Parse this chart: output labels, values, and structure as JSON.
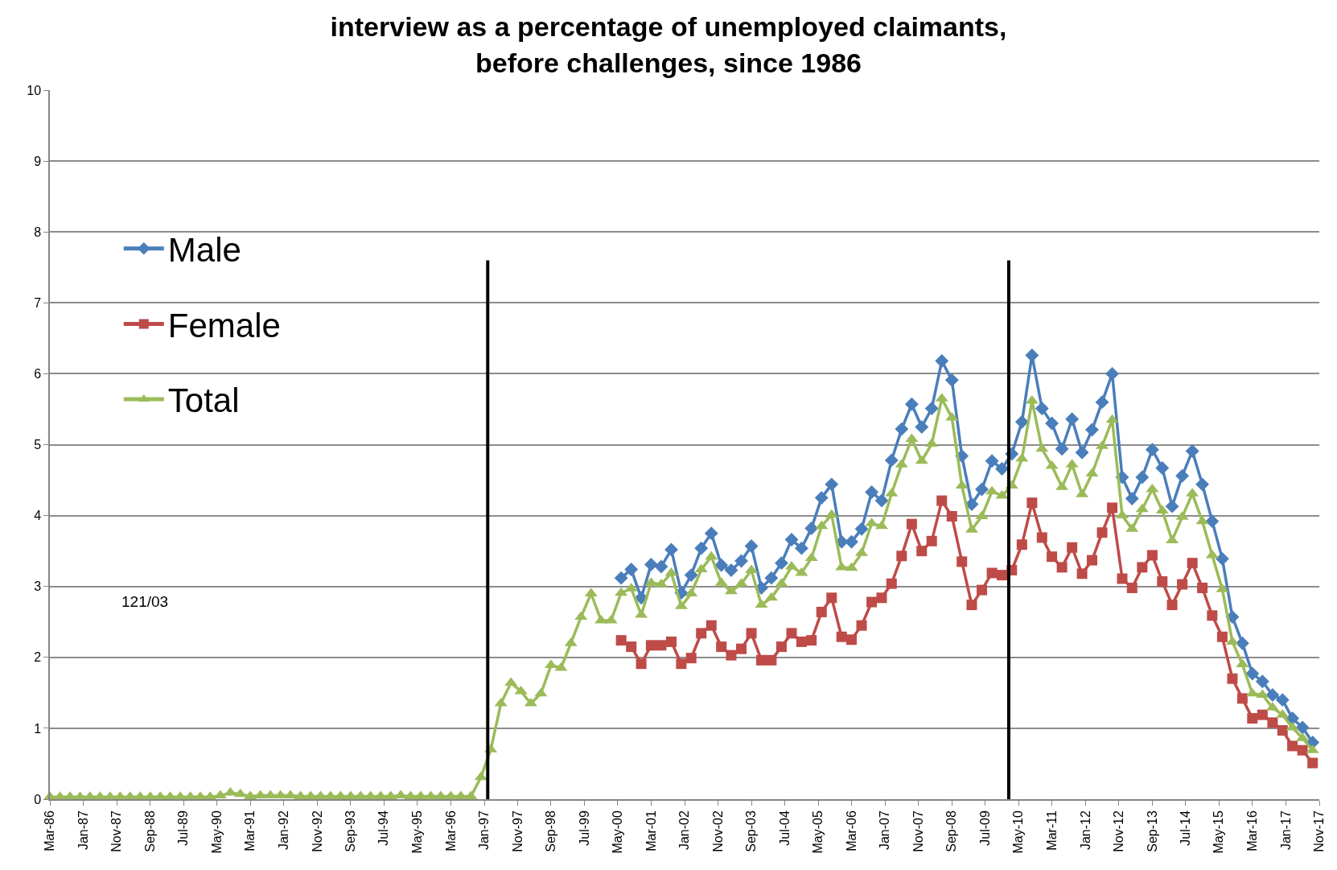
{
  "chart_data": {
    "type": "line",
    "title": "interview as a percentage of unemployed claimants,\nbefore challenges, since 1986",
    "xlim": [
      "1986-03",
      "2017-11"
    ],
    "xticks": [
      {
        "value": "1986-03",
        "label": "Mar-86"
      },
      {
        "value": "1987-01",
        "label": "Jan-87"
      },
      {
        "value": "1987-11",
        "label": "Nov-87"
      },
      {
        "value": "1988-09",
        "label": "Sep-88"
      },
      {
        "value": "1989-07",
        "label": "Jul-89"
      },
      {
        "value": "1990-05",
        "label": "May-90"
      },
      {
        "value": "1991-03",
        "label": "Mar-91"
      },
      {
        "value": "1992-01",
        "label": "Jan-92"
      },
      {
        "value": "1992-11",
        "label": "Nov-92"
      },
      {
        "value": "1993-09",
        "label": "Sep-93"
      },
      {
        "value": "1994-07",
        "label": "Jul-94"
      },
      {
        "value": "1995-05",
        "label": "May-95"
      },
      {
        "value": "1996-03",
        "label": "Mar-96"
      },
      {
        "value": "1997-01",
        "label": "Jan-97"
      },
      {
        "value": "1997-11",
        "label": "Nov-97"
      },
      {
        "value": "1998-09",
        "label": "Sep-98"
      },
      {
        "value": "1999-07",
        "label": "Jul-99"
      },
      {
        "value": "2000-05",
        "label": "May-00"
      },
      {
        "value": "2001-03",
        "label": "Mar-01"
      },
      {
        "value": "2002-01",
        "label": "Jan-02"
      },
      {
        "value": "2002-11",
        "label": "Nov-02"
      },
      {
        "value": "2003-09",
        "label": "Sep-03"
      },
      {
        "value": "2004-07",
        "label": "Jul-04"
      },
      {
        "value": "2005-05",
        "label": "May-05"
      },
      {
        "value": "2006-03",
        "label": "Mar-06"
      },
      {
        "value": "2007-01",
        "label": "Jan-07"
      },
      {
        "value": "2007-11",
        "label": "Nov-07"
      },
      {
        "value": "2008-09",
        "label": "Sep-08"
      },
      {
        "value": "2009-07",
        "label": "Jul-09"
      },
      {
        "value": "2010-05",
        "label": "May-10"
      },
      {
        "value": "2011-03",
        "label": "Mar-11"
      },
      {
        "value": "2012-01",
        "label": "Jan-12"
      },
      {
        "value": "2012-11",
        "label": "Nov-12"
      },
      {
        "value": "2013-09",
        "label": "Sep-13"
      },
      {
        "value": "2014-07",
        "label": "Jul-14"
      },
      {
        "value": "2015-05",
        "label": "May-15"
      },
      {
        "value": "2016-03",
        "label": "Mar-16"
      },
      {
        "value": "2017-01",
        "label": "Jan-17"
      },
      {
        "value": "2017-11",
        "label": "Nov-17"
      }
    ],
    "ylim": [
      0,
      10
    ],
    "yticks": [
      0,
      1,
      2,
      3,
      4,
      5,
      6,
      7,
      8,
      9,
      10
    ],
    "grid": "y",
    "legend": "top left",
    "line_style": "solid",
    "annotations": [
      "121/03"
    ],
    "ref_lines": [
      {
        "axis": "x",
        "value": "1997-02",
        "color": "#000000"
      },
      {
        "axis": "x",
        "value": "2010-02",
        "color": "#000000"
      }
    ],
    "series": [
      {
        "name": "Male",
        "color": "#4a7ebb",
        "marker": "diamond",
        "x": [
          "2000-06",
          "2000-09",
          "2000-12",
          "2001-03",
          "2001-06",
          "2001-09",
          "2001-12",
          "2002-03",
          "2002-06",
          "2002-09",
          "2002-12",
          "2003-03",
          "2003-06",
          "2003-09",
          "2003-12",
          "2004-03",
          "2004-06",
          "2004-09",
          "2004-12",
          "2005-03",
          "2005-06",
          "2005-09",
          "2005-12",
          "2006-03",
          "2006-06",
          "2006-09",
          "2006-12",
          "2007-03",
          "2007-06",
          "2007-09",
          "2007-12",
          "2008-03",
          "2008-06",
          "2008-09",
          "2008-12",
          "2009-03",
          "2009-06",
          "2009-09",
          "2009-12",
          "2010-03",
          "2010-06",
          "2010-09",
          "2010-12",
          "2011-03",
          "2011-06",
          "2011-09",
          "2011-12",
          "2012-03",
          "2012-06",
          "2012-09",
          "2012-12",
          "2013-03",
          "2013-06",
          "2013-09",
          "2013-12",
          "2014-03",
          "2014-06",
          "2014-09",
          "2014-12",
          "2015-03",
          "2015-06",
          "2015-09",
          "2015-12",
          "2016-03",
          "2016-06",
          "2016-09",
          "2016-12",
          "2017-03",
          "2017-06",
          "2017-09"
        ],
        "values": [
          3.12,
          3.24,
          2.84,
          3.31,
          3.28,
          3.52,
          2.91,
          3.16,
          3.54,
          3.75,
          3.3,
          3.23,
          3.36,
          3.57,
          2.98,
          3.12,
          3.33,
          3.66,
          3.54,
          3.82,
          4.25,
          4.44,
          3.63,
          3.63,
          3.81,
          4.33,
          4.21,
          4.78,
          5.22,
          5.57,
          5.25,
          5.51,
          6.18,
          5.91,
          4.84,
          4.16,
          4.37,
          4.77,
          4.66,
          4.87,
          5.32,
          6.26,
          5.51,
          5.3,
          4.94,
          5.36,
          4.89,
          5.21,
          5.6,
          6.0,
          4.54,
          4.24,
          4.54,
          4.93,
          4.67,
          4.13,
          4.56,
          4.91,
          4.44,
          3.92,
          3.39,
          2.57,
          2.2,
          1.77,
          1.66,
          1.47,
          1.4,
          1.14,
          1.01,
          0.8
        ]
      },
      {
        "name": "Female",
        "color": "#be4b48",
        "marker": "square",
        "x": [
          "2000-06",
          "2000-09",
          "2000-12",
          "2001-03",
          "2001-06",
          "2001-09",
          "2001-12",
          "2002-03",
          "2002-06",
          "2002-09",
          "2002-12",
          "2003-03",
          "2003-06",
          "2003-09",
          "2003-12",
          "2004-03",
          "2004-06",
          "2004-09",
          "2004-12",
          "2005-03",
          "2005-06",
          "2005-09",
          "2005-12",
          "2006-03",
          "2006-06",
          "2006-09",
          "2006-12",
          "2007-03",
          "2007-06",
          "2007-09",
          "2007-12",
          "2008-03",
          "2008-06",
          "2008-09",
          "2008-12",
          "2009-03",
          "2009-06",
          "2009-09",
          "2009-12",
          "2010-03",
          "2010-06",
          "2010-09",
          "2010-12",
          "2011-03",
          "2011-06",
          "2011-09",
          "2011-12",
          "2012-03",
          "2012-06",
          "2012-09",
          "2012-12",
          "2013-03",
          "2013-06",
          "2013-09",
          "2013-12",
          "2014-03",
          "2014-06",
          "2014-09",
          "2014-12",
          "2015-03",
          "2015-06",
          "2015-09",
          "2015-12",
          "2016-03",
          "2016-06",
          "2016-09",
          "2016-12",
          "2017-03",
          "2017-06",
          "2017-09"
        ],
        "values": [
          2.24,
          2.15,
          1.91,
          2.17,
          2.17,
          2.22,
          1.91,
          1.99,
          2.34,
          2.45,
          2.15,
          2.03,
          2.12,
          2.34,
          1.96,
          1.96,
          2.15,
          2.34,
          2.22,
          2.24,
          2.64,
          2.84,
          2.29,
          2.25,
          2.45,
          2.78,
          2.84,
          3.04,
          3.43,
          3.88,
          3.5,
          3.64,
          4.21,
          3.99,
          3.35,
          2.74,
          2.95,
          3.19,
          3.16,
          3.23,
          3.59,
          4.18,
          3.69,
          3.42,
          3.27,
          3.55,
          3.18,
          3.37,
          3.76,
          4.11,
          3.11,
          2.98,
          3.27,
          3.44,
          3.07,
          2.74,
          3.03,
          3.33,
          2.98,
          2.59,
          2.29,
          1.7,
          1.42,
          1.14,
          1.19,
          1.08,
          0.97,
          0.75,
          0.69,
          0.51
        ]
      },
      {
        "name": "Total",
        "color": "#9bbb59",
        "marker": "triangle",
        "x": [
          "1986-03",
          "1986-06",
          "1986-09",
          "1986-12",
          "1987-03",
          "1987-06",
          "1987-09",
          "1987-12",
          "1988-03",
          "1988-06",
          "1988-09",
          "1988-12",
          "1989-03",
          "1989-06",
          "1989-09",
          "1989-12",
          "1990-03",
          "1990-06",
          "1990-09",
          "1990-12",
          "1991-03",
          "1991-06",
          "1991-09",
          "1991-12",
          "1992-03",
          "1992-06",
          "1992-09",
          "1992-12",
          "1993-03",
          "1993-06",
          "1993-09",
          "1993-12",
          "1994-03",
          "1994-06",
          "1994-09",
          "1994-12",
          "1995-03",
          "1995-06",
          "1995-09",
          "1995-12",
          "1996-03",
          "1996-06",
          "1996-09",
          "1996-12",
          "1997-03",
          "1997-06",
          "1997-09",
          "1997-12",
          "1998-03",
          "1998-06",
          "1998-09",
          "1998-12",
          "1999-03",
          "1999-06",
          "1999-09",
          "1999-12",
          "2000-03",
          "2000-06",
          "2000-09",
          "2000-12",
          "2001-03",
          "2001-06",
          "2001-09",
          "2001-12",
          "2002-03",
          "2002-06",
          "2002-09",
          "2002-12",
          "2003-03",
          "2003-06",
          "2003-09",
          "2003-12",
          "2004-03",
          "2004-06",
          "2004-09",
          "2004-12",
          "2005-03",
          "2005-06",
          "2005-09",
          "2005-12",
          "2006-03",
          "2006-06",
          "2006-09",
          "2006-12",
          "2007-03",
          "2007-06",
          "2007-09",
          "2007-12",
          "2008-03",
          "2008-06",
          "2008-09",
          "2008-12",
          "2009-03",
          "2009-06",
          "2009-09",
          "2009-12",
          "2010-03",
          "2010-06",
          "2010-09",
          "2010-12",
          "2011-03",
          "2011-06",
          "2011-09",
          "2011-12",
          "2012-03",
          "2012-06",
          "2012-09",
          "2012-12",
          "2013-03",
          "2013-06",
          "2013-09",
          "2013-12",
          "2014-03",
          "2014-06",
          "2014-09",
          "2014-12",
          "2015-03",
          "2015-06",
          "2015-09",
          "2015-12",
          "2016-03",
          "2016-06",
          "2016-09",
          "2016-12",
          "2017-03",
          "2017-06",
          "2017-09"
        ],
        "values": [
          0.03,
          0.03,
          0.03,
          0.03,
          0.03,
          0.03,
          0.03,
          0.03,
          0.03,
          0.03,
          0.03,
          0.03,
          0.03,
          0.03,
          0.03,
          0.03,
          0.03,
          0.05,
          0.09,
          0.07,
          0.04,
          0.05,
          0.05,
          0.05,
          0.05,
          0.04,
          0.04,
          0.04,
          0.04,
          0.04,
          0.04,
          0.04,
          0.04,
          0.04,
          0.04,
          0.05,
          0.04,
          0.04,
          0.04,
          0.04,
          0.04,
          0.04,
          0.04,
          0.31,
          0.7,
          1.35,
          1.64,
          1.52,
          1.35,
          1.49,
          1.89,
          1.85,
          2.2,
          2.57,
          2.9,
          2.52,
          2.52,
          2.91,
          2.97,
          2.6,
          3.05,
          3.03,
          3.19,
          2.72,
          2.9,
          3.24,
          3.42,
          3.05,
          2.93,
          3.04,
          3.23,
          2.74,
          2.84,
          3.04,
          3.28,
          3.19,
          3.4,
          3.85,
          4.01,
          3.27,
          3.26,
          3.47,
          3.89,
          3.85,
          4.31,
          4.72,
          5.08,
          4.77,
          5.01,
          5.65,
          5.38,
          4.42,
          3.8,
          3.99,
          4.34,
          4.28,
          4.42,
          4.8,
          5.62,
          4.94,
          4.7,
          4.4,
          4.72,
          4.3,
          4.59,
          4.98,
          5.35,
          4.0,
          3.81,
          4.09,
          4.37,
          4.07,
          3.65,
          3.98,
          4.31,
          3.92,
          3.44,
          2.96,
          2.22,
          1.9,
          1.49,
          1.47,
          1.29,
          1.19,
          1.01,
          0.86,
          0.69
        ]
      }
    ]
  }
}
